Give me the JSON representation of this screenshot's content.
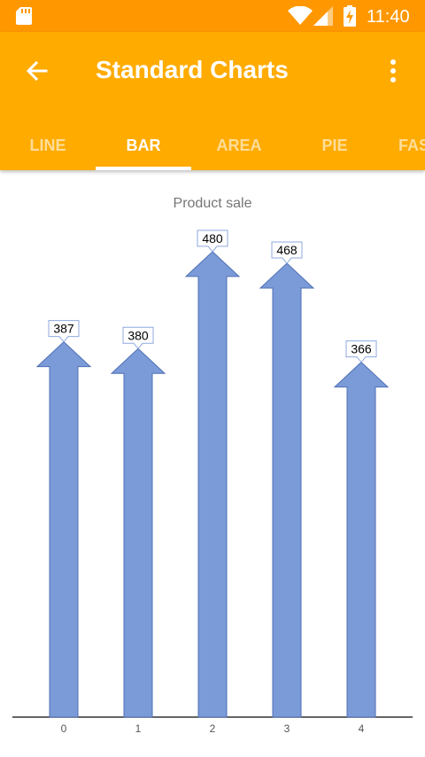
{
  "status_bar": {
    "time": "11:40",
    "icons": [
      "sd-card-icon",
      "wifi-icon",
      "signal-icon",
      "battery-charging-icon"
    ]
  },
  "app_bar": {
    "title": "Standard Charts",
    "back_icon": "arrow-left-icon",
    "menu_icon": "more-vertical-icon"
  },
  "tabs": [
    {
      "label": "LINE"
    },
    {
      "label": "BAR",
      "active": true
    },
    {
      "label": "AREA"
    },
    {
      "label": "PIE"
    },
    {
      "label": "FAST LINE"
    }
  ],
  "colors": {
    "status_bar": "#FF9800",
    "app_bar": "#FFAB00",
    "bar_fill": "#7B9BD8",
    "bar_stroke": "#4F6FB5",
    "label_border": "#8FA9DF"
  },
  "chart_data": {
    "type": "bar",
    "title": "Product sale",
    "categories": [
      "0",
      "1",
      "2",
      "3",
      "4"
    ],
    "values": [
      387,
      380,
      480,
      468,
      366
    ],
    "data_labels": [
      "387",
      "380",
      "480",
      "468",
      "366"
    ],
    "ylim": [
      0,
      500
    ],
    "grid": false,
    "marker": "arrow"
  }
}
